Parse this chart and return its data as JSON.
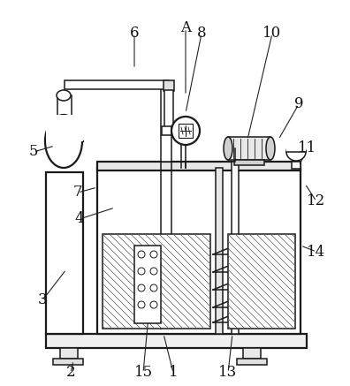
{
  "background_color": "#ffffff",
  "line_color": "#1a1a1a",
  "label_fontsize": 12,
  "labels_data": {
    "1": [
      196,
      422,
      185,
      378
    ],
    "2": [
      80,
      422,
      83,
      408
    ],
    "3": [
      48,
      340,
      75,
      305
    ],
    "4": [
      90,
      248,
      130,
      235
    ],
    "5": [
      38,
      172,
      62,
      165
    ],
    "6": [
      152,
      38,
      152,
      78
    ],
    "7": [
      88,
      218,
      110,
      212
    ],
    "8": [
      228,
      38,
      210,
      128
    ],
    "9": [
      338,
      118,
      315,
      158
    ],
    "10": [
      308,
      38,
      280,
      158
    ],
    "11": [
      348,
      168,
      338,
      188
    ],
    "12": [
      358,
      228,
      345,
      208
    ],
    "13": [
      258,
      422,
      263,
      378
    ],
    "14": [
      358,
      285,
      340,
      278
    ],
    "15": [
      162,
      422,
      168,
      358
    ],
    "A": [
      210,
      32,
      210,
      108
    ]
  }
}
